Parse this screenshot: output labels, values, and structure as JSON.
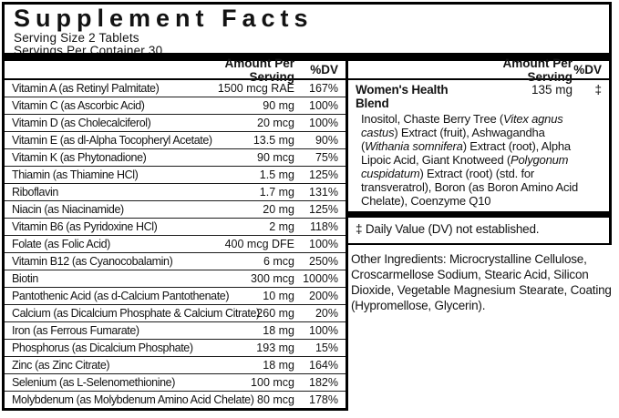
{
  "title": "Supplement Facts",
  "serving_size": "Serving Size 2 Tablets",
  "servings_per_container": "Servings Per Container 30",
  "columns": {
    "amount": "Amount Per Serving",
    "dv": "%DV"
  },
  "nutrients": [
    {
      "name": "Vitamin A (as Retinyl Palmitate)",
      "amount": "1500 mcg RAE",
      "dv": "167%"
    },
    {
      "name": "Vitamin C (as Ascorbic Acid)",
      "amount": "90 mg",
      "dv": "100%"
    },
    {
      "name": "Vitamin D (as Cholecalciferol)",
      "amount": "20 mcg",
      "dv": "100%"
    },
    {
      "name": "Vitamin E (as dl-Alpha Tocopheryl Acetate)",
      "amount": "13.5 mg",
      "dv": "90%"
    },
    {
      "name": "Vitamin K (as Phytonadione)",
      "amount": "90 mcg",
      "dv": "75%"
    },
    {
      "name": "Thiamin (as Thiamine HCl)",
      "amount": "1.5 mg",
      "dv": "125%"
    },
    {
      "name": "Riboflavin",
      "amount": "1.7 mg",
      "dv": "131%"
    },
    {
      "name": "Niacin (as Niacinamide)",
      "amount": "20 mg",
      "dv": "125%"
    },
    {
      "name": "Vitamin B6 (as Pyridoxine HCl)",
      "amount": "2 mg",
      "dv": "118%"
    },
    {
      "name": "Folate (as Folic Acid)",
      "amount": "400 mcg DFE",
      "dv": "100%"
    },
    {
      "name": "Vitamin B12 (as Cyanocobalamin)",
      "amount": "6 mcg",
      "dv": "250%"
    },
    {
      "name": "Biotin",
      "amount": "300 mcg",
      "dv": "1000%"
    },
    {
      "name": "Pantothenic Acid (as d-Calcium Pantothenate)",
      "amount": "10 mg",
      "dv": "200%"
    },
    {
      "name": "Calcium (as Dicalcium Phosphate & Calcium Citrate)",
      "amount": "260 mg",
      "dv": "20%"
    },
    {
      "name": "Iron (as Ferrous Fumarate)",
      "amount": "18 mg",
      "dv": "100%"
    },
    {
      "name": "Phosphorus (as Dicalcium Phosphate)",
      "amount": "193 mg",
      "dv": "15%"
    },
    {
      "name": "Zinc (as Zinc Citrate)",
      "amount": "18 mg",
      "dv": "164%"
    },
    {
      "name": "Selenium (as L-Selenomethionine)",
      "amount": "100 mcg",
      "dv": "182%"
    },
    {
      "name": "Molybdenum (as Molybdenum Amino Acid Chelate)",
      "amount": "80 mcg",
      "dv": "178%"
    }
  ],
  "blend": {
    "name": "Women's Health Blend",
    "amount": "135 mg",
    "dv": "‡",
    "description_segments": [
      {
        "text": "Inositol, Chaste Berry Tree (",
        "italic": false
      },
      {
        "text": "Vitex agnus castus",
        "italic": true
      },
      {
        "text": ") Extract (fruit), Ashwagandha (",
        "italic": false
      },
      {
        "text": "Withania somnifera",
        "italic": true
      },
      {
        "text": ") Extract (root), Alpha Lipoic Acid, Giant Knotweed (",
        "italic": false
      },
      {
        "text": "Polygonum cuspidatum",
        "italic": true
      },
      {
        "text": ") Extract (root) (std. for transveratrol), Boron (as Boron Amino Acid Chelate), Coenzyme Q10",
        "italic": false
      }
    ]
  },
  "footnote": "‡ Daily Value (DV) not established.",
  "other_ingredients": "Other Ingredients: Microcrystalline Cellulose, Croscarmellose Sodium, Stearic Acid, Silicon Dioxide, Vegetable Magnesium Stearate, Coating (Hypromellose, Glycerin).",
  "colors": {
    "background": "#ffffff",
    "text": "#131313",
    "border": "#000000"
  }
}
